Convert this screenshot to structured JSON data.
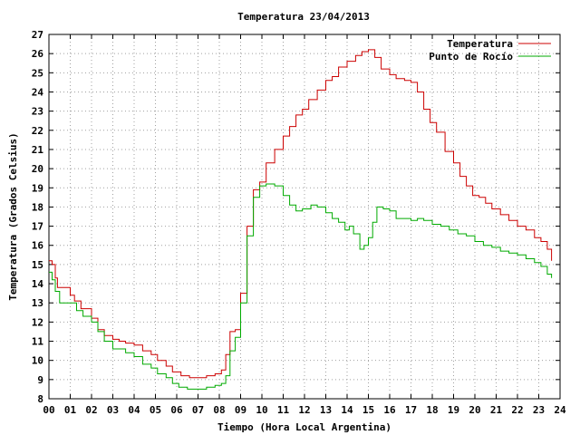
{
  "chart_data": {
    "type": "line",
    "title": "Temperatura 23/04/2013",
    "xlabel": "Tiempo (Hora Local Argentina)",
    "ylabel": "Temperatura (Grados Celsius)",
    "xlim": [
      0,
      24
    ],
    "ylim": [
      8,
      27
    ],
    "x_ticks": [
      "00",
      "01",
      "02",
      "03",
      "04",
      "05",
      "06",
      "07",
      "08",
      "09",
      "10",
      "11",
      "12",
      "13",
      "14",
      "15",
      "16",
      "17",
      "18",
      "19",
      "20",
      "21",
      "22",
      "23",
      "24"
    ],
    "y_ticks": [
      "8",
      "9",
      "10",
      "11",
      "12",
      "13",
      "14",
      "15",
      "16",
      "17",
      "18",
      "19",
      "20",
      "21",
      "22",
      "23",
      "24",
      "25",
      "26",
      "27"
    ],
    "grid": true,
    "legend_position": "top-right",
    "series": [
      {
        "name": "Temperatura",
        "color": "#cc0000",
        "x": [
          0.0,
          0.15,
          0.3,
          0.4,
          0.6,
          1.0,
          1.2,
          1.5,
          2.0,
          2.3,
          2.6,
          3.0,
          3.3,
          3.6,
          4.0,
          4.4,
          4.8,
          5.1,
          5.5,
          5.8,
          6.2,
          6.6,
          7.0,
          7.4,
          7.8,
          8.1,
          8.3,
          8.5,
          8.75,
          9.0,
          9.3,
          9.6,
          9.9,
          10.2,
          10.6,
          11.0,
          11.3,
          11.6,
          11.9,
          12.2,
          12.6,
          13.0,
          13.3,
          13.6,
          14.0,
          14.4,
          14.7,
          15.0,
          15.3,
          15.6,
          16.0,
          16.3,
          16.7,
          17.0,
          17.3,
          17.6,
          17.9,
          18.2,
          18.6,
          19.0,
          19.3,
          19.6,
          19.9,
          20.2,
          20.5,
          20.8,
          21.2,
          21.6,
          22.0,
          22.4,
          22.8,
          23.1,
          23.4,
          23.6
        ],
        "values": [
          15.2,
          15.0,
          14.3,
          13.8,
          13.8,
          13.4,
          13.1,
          12.7,
          12.2,
          11.6,
          11.3,
          11.1,
          11.0,
          10.9,
          10.8,
          10.5,
          10.3,
          10.0,
          9.7,
          9.4,
          9.2,
          9.1,
          9.1,
          9.2,
          9.3,
          9.5,
          10.3,
          11.5,
          11.6,
          13.5,
          17.0,
          18.9,
          19.3,
          20.3,
          21.0,
          21.7,
          22.2,
          22.8,
          23.1,
          23.6,
          24.1,
          24.6,
          24.8,
          25.3,
          25.6,
          25.9,
          26.1,
          26.2,
          25.8,
          25.2,
          24.9,
          24.7,
          24.6,
          24.5,
          24.0,
          23.1,
          22.4,
          21.9,
          20.9,
          20.3,
          19.6,
          19.1,
          18.6,
          18.5,
          18.2,
          17.9,
          17.6,
          17.3,
          17.0,
          16.8,
          16.4,
          16.2,
          15.8,
          15.2
        ]
      },
      {
        "name": "Punto de Rocío",
        "color": "#00aa00",
        "x": [
          0.0,
          0.15,
          0.3,
          0.5,
          1.0,
          1.3,
          1.6,
          2.0,
          2.3,
          2.6,
          3.0,
          3.3,
          3.6,
          4.0,
          4.4,
          4.8,
          5.1,
          5.5,
          5.8,
          6.1,
          6.5,
          7.0,
          7.4,
          7.8,
          8.1,
          8.3,
          8.5,
          8.75,
          9.0,
          9.3,
          9.6,
          9.9,
          10.2,
          10.6,
          11.0,
          11.3,
          11.6,
          11.9,
          12.3,
          12.6,
          13.0,
          13.3,
          13.6,
          13.9,
          14.1,
          14.3,
          14.6,
          14.8,
          15.0,
          15.2,
          15.4,
          15.7,
          16.0,
          16.3,
          16.6,
          17.0,
          17.3,
          17.6,
          18.0,
          18.4,
          18.8,
          19.2,
          19.6,
          20.0,
          20.4,
          20.8,
          21.2,
          21.6,
          22.0,
          22.4,
          22.8,
          23.1,
          23.4,
          23.6
        ],
        "values": [
          14.6,
          14.2,
          13.6,
          13.0,
          13.0,
          12.6,
          12.3,
          12.0,
          11.5,
          11.0,
          10.6,
          10.6,
          10.4,
          10.2,
          9.8,
          9.6,
          9.3,
          9.1,
          8.8,
          8.6,
          8.5,
          8.5,
          8.6,
          8.7,
          8.8,
          9.2,
          10.5,
          11.2,
          13.0,
          16.5,
          18.5,
          19.1,
          19.2,
          19.1,
          18.6,
          18.1,
          17.8,
          17.9,
          18.1,
          18.0,
          17.7,
          17.4,
          17.2,
          16.8,
          17.0,
          16.6,
          15.8,
          16.0,
          16.4,
          17.2,
          18.0,
          17.9,
          17.8,
          17.4,
          17.4,
          17.3,
          17.4,
          17.3,
          17.1,
          17.0,
          16.8,
          16.6,
          16.5,
          16.2,
          16.0,
          15.9,
          15.7,
          15.6,
          15.5,
          15.3,
          15.1,
          14.9,
          14.5,
          14.3
        ]
      }
    ]
  }
}
